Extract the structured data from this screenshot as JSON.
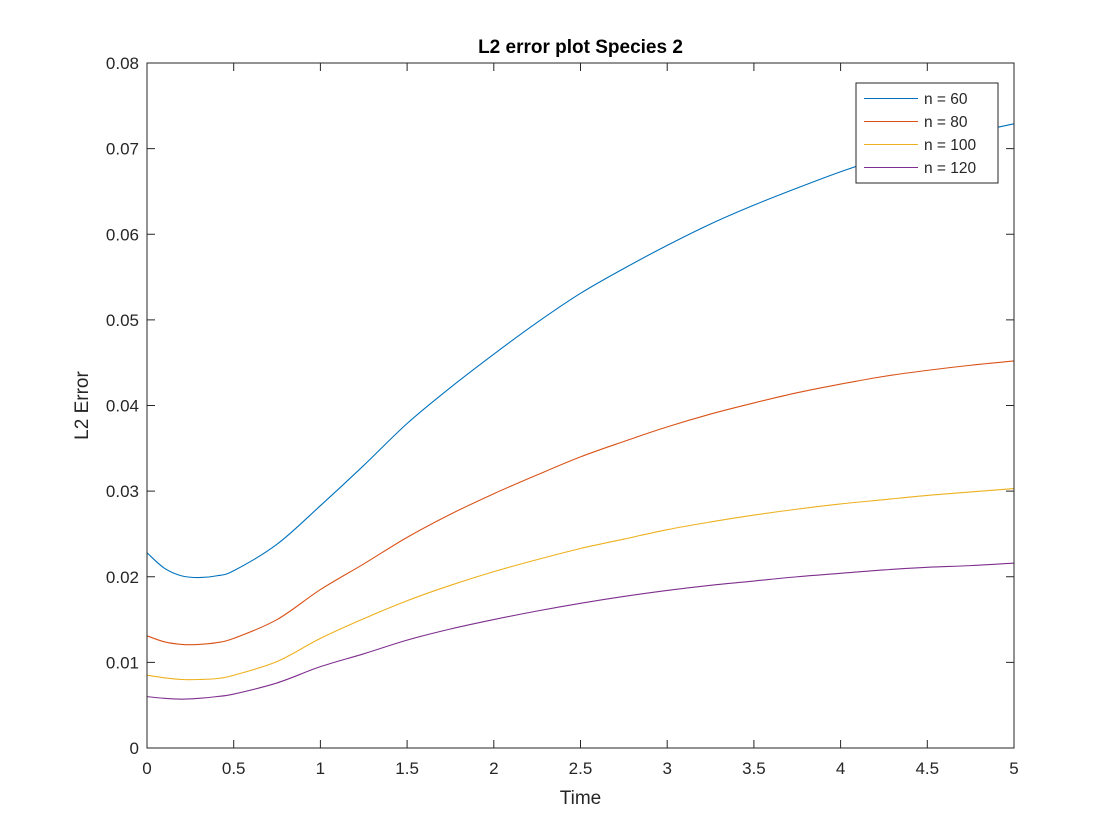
{
  "chart_data": {
    "type": "line",
    "title": "L2 error plot Species 2",
    "xlabel": "Time",
    "ylabel": "L2 Error",
    "xlim": [
      0,
      5
    ],
    "ylim": [
      0,
      0.08
    ],
    "xticks": [
      0,
      0.5,
      1,
      1.5,
      2,
      2.5,
      3,
      3.5,
      4,
      4.5,
      5
    ],
    "xtick_labels": [
      "0",
      "0.5",
      "1",
      "1.5",
      "2",
      "2.5",
      "3",
      "3.5",
      "4",
      "4.5",
      "5"
    ],
    "yticks": [
      0,
      0.01,
      0.02,
      0.03,
      0.04,
      0.05,
      0.06,
      0.07,
      0.08
    ],
    "ytick_labels": [
      "0",
      "0.01",
      "0.02",
      "0.03",
      "0.04",
      "0.05",
      "0.06",
      "0.07",
      "0.08"
    ],
    "grid": false,
    "legend_position": "top-right",
    "x": [
      0,
      0.1,
      0.2,
      0.3,
      0.4,
      0.5,
      0.75,
      1,
      1.25,
      1.5,
      1.75,
      2,
      2.25,
      2.5,
      2.75,
      3,
      3.25,
      3.5,
      3.75,
      4,
      4.25,
      4.5,
      4.75,
      5
    ],
    "series": [
      {
        "name": "n = 60",
        "color": "#0072BD",
        "values": [
          0.0228,
          0.021,
          0.0201,
          0.0199,
          0.0201,
          0.0207,
          0.0238,
          0.0283,
          0.033,
          0.0379,
          0.0421,
          0.046,
          0.0497,
          0.0531,
          0.056,
          0.0587,
          0.0612,
          0.0634,
          0.0654,
          0.0673,
          0.069,
          0.0705,
          0.0718,
          0.0729
        ]
      },
      {
        "name": "n = 80",
        "color": "#D95319",
        "values": [
          0.0131,
          0.0124,
          0.0121,
          0.0121,
          0.0123,
          0.0128,
          0.015,
          0.0185,
          0.0215,
          0.0246,
          0.0273,
          0.0297,
          0.0319,
          0.034,
          0.0358,
          0.0375,
          0.039,
          0.0403,
          0.0415,
          0.0425,
          0.0434,
          0.0441,
          0.0447,
          0.0452
        ]
      },
      {
        "name": "n = 100",
        "color": "#EDB120",
        "values": [
          0.0085,
          0.0082,
          0.008,
          0.008,
          0.0081,
          0.0085,
          0.0101,
          0.0128,
          0.0151,
          0.0172,
          0.019,
          0.0206,
          0.022,
          0.0233,
          0.0244,
          0.0255,
          0.0264,
          0.0272,
          0.0279,
          0.0285,
          0.029,
          0.0295,
          0.0299,
          0.0303
        ]
      },
      {
        "name": "n = 120",
        "color": "#7E2F8E",
        "values": [
          0.006,
          0.0058,
          0.0057,
          0.0058,
          0.006,
          0.0063,
          0.0076,
          0.0095,
          0.011,
          0.0126,
          0.0139,
          0.015,
          0.016,
          0.0169,
          0.0177,
          0.0184,
          0.019,
          0.0195,
          0.02,
          0.0204,
          0.0208,
          0.0211,
          0.0213,
          0.0216
        ]
      }
    ]
  }
}
